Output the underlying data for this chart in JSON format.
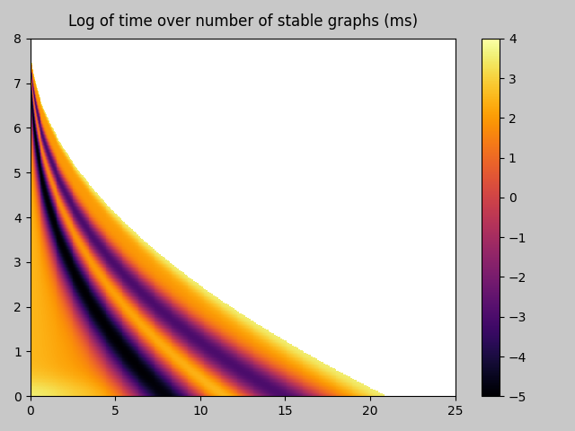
{
  "title": "Log of time over number of stable graphs (ms)",
  "xlim": [
    0,
    25
  ],
  "ylim": [
    0,
    8
  ],
  "clim": [
    -5,
    4
  ],
  "x_ticks": [
    0,
    5,
    10,
    15,
    20,
    25
  ],
  "y_ticks": [
    0,
    1,
    2,
    3,
    4,
    5,
    6,
    7,
    8
  ],
  "colorbar_ticks": [
    -5,
    -4,
    -3,
    -2,
    -1,
    0,
    1,
    2,
    3,
    4
  ],
  "colormap": "inferno",
  "nx": 500,
  "ny": 300,
  "fig_background": "#c8c8c8"
}
